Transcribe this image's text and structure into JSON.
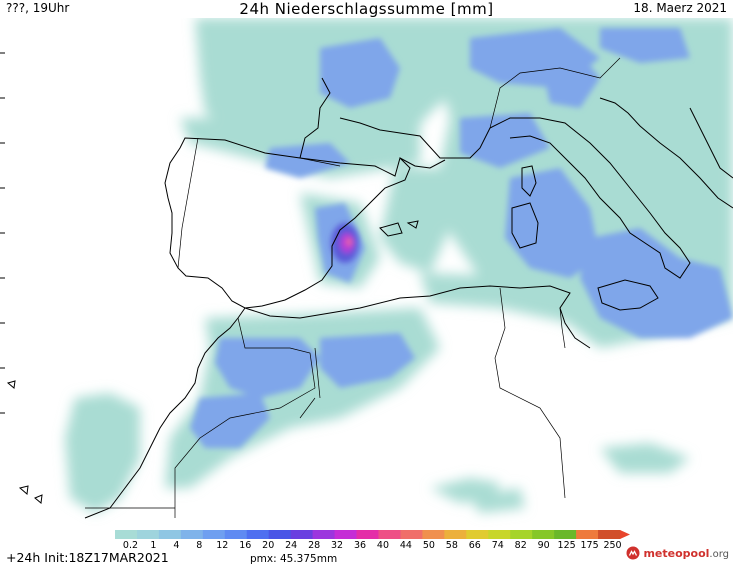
{
  "header": {
    "left": "???, 19Uhr",
    "title": "24h Niederschlagssumme [mm]",
    "date": "18. Maerz 2021"
  },
  "legend": {
    "labels": [
      "0.2",
      "1",
      "4",
      "8",
      "12",
      "16",
      "20",
      "24",
      "28",
      "32",
      "36",
      "40",
      "44",
      "50",
      "58",
      "66",
      "74",
      "82",
      "90",
      "125",
      "175",
      "250"
    ],
    "colors": [
      "#a8dcd6",
      "#9fd4dd",
      "#8fc6e3",
      "#7fb3ea",
      "#6f9ff0",
      "#5f8af2",
      "#4e6ff0",
      "#4a55e6",
      "#6a3fe0",
      "#9c36de",
      "#c52ed6",
      "#e42ea8",
      "#ee4f86",
      "#f06f6a",
      "#f0904e",
      "#ecb03b",
      "#e0cb30",
      "#c8d62a",
      "#a6d42a",
      "#86c728",
      "#6ab82a",
      "#ee7a3c",
      "#d14f2a"
    ]
  },
  "footer": {
    "init": "+24h Init:18Z17MAR2021",
    "pmx": "pmx: 45.375mm"
  },
  "logo": {
    "name": "meteopool",
    "tld": ".org"
  },
  "colors": {
    "sea_precip": "#a9dcd3",
    "land": "#ffffff",
    "coast": "#000000"
  }
}
